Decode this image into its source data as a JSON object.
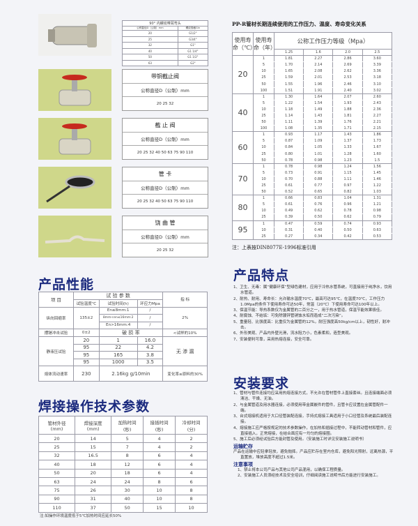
{
  "elbow": {
    "title": "90° 内螺纹带耳弯头",
    "col1": "公称直径D（公制）mm",
    "col2": "螺纹规格Gin",
    "rows": [
      [
        "20",
        "G1/2\""
      ],
      [
        "25",
        "G3/4\""
      ],
      [
        "32",
        "G1\""
      ],
      [
        "40",
        "G1 1/4\""
      ],
      [
        "50",
        "G1 1/2\""
      ],
      [
        "63",
        "G2\""
      ]
    ]
  },
  "products": [
    {
      "name": "带铜截止阀",
      "label": "公称直径D（公制）mm",
      "sizes": "20 25 32",
      "icon": "brass-valve-photo"
    },
    {
      "name": "截 止 阀",
      "label": "公称直径D（公制）mm",
      "sizes": "20 25 32 40 50 63 75 90 110",
      "icon": "stop-valve-photo"
    },
    {
      "name": "管 卡",
      "label": "公称直径D（公制）mm",
      "sizes": "20 25 32 40 50 63 75 90 110",
      "icon": "pipe-clamp-photo"
    },
    {
      "name": "饶 曲 管",
      "label": "公称直径D（公制）mm",
      "sizes": "20 25 32",
      "icon": "bend-pipe-photo"
    }
  ],
  "pressure": {
    "title": "PP-R管材长期连续使用的工作压力、温度、寿命变化关系",
    "h_temp": "使用寿命（℃）",
    "h_life": "使用寿命（年）",
    "h_grade": "公称工作压力等级（Mpa）",
    "grades": [
      "1.25",
      "1.6",
      "2.0",
      "2.5"
    ],
    "groups": [
      {
        "temp": "20",
        "rows": [
          [
            "1",
            "1.81",
            "2.27",
            "2.86",
            "3.60"
          ],
          [
            "5",
            "1.70",
            "2.14",
            "2.69",
            "3.39"
          ],
          [
            "10",
            "1.65",
            "2.08",
            "2.62",
            "3.36"
          ],
          [
            "25",
            "1.59",
            "2.01",
            "2.53",
            "3.18"
          ],
          [
            "50",
            "1.55",
            "1.96",
            "2.46",
            "3.10"
          ],
          [
            "100",
            "1.51",
            "1.91",
            "2.40",
            "3.02"
          ]
        ]
      },
      {
        "temp": "40",
        "rows": [
          [
            "1",
            "1.30",
            "1.64",
            "2.07",
            "2.60"
          ],
          [
            "5",
            "1.22",
            "1.54",
            "1.93",
            "2.43"
          ],
          [
            "10",
            "1.18",
            "1.49",
            "1.88",
            "2.36"
          ],
          [
            "25",
            "1.14",
            "1.43",
            "1.81",
            "2.27"
          ],
          [
            "50",
            "1.11",
            "1.39",
            "1.76",
            "2.21"
          ],
          [
            "100",
            "1.08",
            "1.35",
            "1.71",
            "2.15"
          ]
        ]
      },
      {
        "temp": "60",
        "rows": [
          [
            "1",
            "0.93",
            "1.17",
            "1.43",
            "1.86"
          ],
          [
            "5",
            "0.87",
            "1.09",
            "1.37",
            "1.73"
          ],
          [
            "10",
            "0.84",
            "1.05",
            "1.33",
            "1.67"
          ],
          [
            "25",
            "0.80",
            "1.01",
            "1.28",
            "1.60"
          ],
          [
            "50",
            "0.78",
            "0.98",
            "1.23",
            "1.5"
          ]
        ]
      },
      {
        "temp": "70",
        "rows": [
          [
            "1",
            "0.78",
            "0.98",
            "1.24",
            "1.56"
          ],
          [
            "5",
            "0.73",
            "0.91",
            "1.15",
            "1.45"
          ],
          [
            "10",
            "0.70",
            "0.88",
            "1.11",
            "1.46"
          ],
          [
            "25",
            "0.61",
            "0.77",
            "0.97",
            "1.22"
          ],
          [
            "50",
            "0.52",
            "0.65",
            "0.82",
            "1.03"
          ]
        ]
      },
      {
        "temp": "80",
        "rows": [
          [
            "1",
            "0.66",
            "0.83",
            "1.04",
            "1.31"
          ],
          [
            "5",
            "0.61",
            "0.76",
            "0.96",
            "1.21"
          ],
          [
            "10",
            "0.49",
            "0.62",
            "0.78",
            "0.98"
          ],
          [
            "25",
            "0.39",
            "0.50",
            "0.62",
            "0.79"
          ]
        ]
      },
      {
        "temp": "95",
        "rows": [
          [
            "1",
            "0.47",
            "0.59",
            "0.74",
            "0.93"
          ],
          [
            "10",
            "0.31",
            "0.40",
            "0.50",
            "0.63"
          ],
          [
            "25",
            "0.27",
            "0.34",
            "0.42",
            "0.53"
          ]
        ]
      }
    ],
    "note": "注：上表按DIN8077E-1996标准引用"
  },
  "performance": {
    "heading": "产品性能",
    "h_item": "项 目",
    "h_params": "试 验 参 数",
    "h_index": "指 标",
    "h_temp": "试验温度℃",
    "h_time": "试验时间(h)",
    "h_stress": "环应力Mpa",
    "shrink": {
      "label": "纵向回缩率",
      "temp": "135±2",
      "rows": [
        [
          "En≤8mm:1",
          "/"
        ],
        [
          "8mm<en≤16mm:2",
          "/"
        ],
        [
          "En>16mm:4",
          "/"
        ]
      ],
      "index": "2%"
    },
    "impact": {
      "label": "摆锤冲击试验",
      "temp": "0±2",
      "param": "破 损 率",
      "index": "<试样的10%"
    },
    "hydro": {
      "label": "静液压试验",
      "rows": [
        [
          "20",
          "1",
          "16.0"
        ],
        [
          "95",
          "22",
          "4.2"
        ],
        [
          "95",
          "165",
          "3.8"
        ],
        [
          "95",
          "1000",
          "3.5"
        ]
      ],
      "index": "无 渗 漏"
    },
    "melt": {
      "label": "熔体流动速率",
      "temp": "230",
      "param": "2.16kg  g/10min",
      "index": "变化率≤原料的30%"
    }
  },
  "welding": {
    "heading": "焊接操作技术参数",
    "headers": [
      "管材外径(mm)",
      "焊接深度(mm)",
      "加热时间(秒)",
      "接插时间(秒)",
      "冷却时间(分)"
    ],
    "rows": [
      [
        "20",
        "14",
        "5",
        "4",
        "2"
      ],
      [
        "25",
        "15",
        "7",
        "4",
        "2"
      ],
      [
        "32",
        "16.5",
        "8",
        "6",
        "4"
      ],
      [
        "40",
        "18",
        "12",
        "6",
        "4"
      ],
      [
        "50",
        "20",
        "18",
        "6",
        "4"
      ],
      [
        "63",
        "24",
        "24",
        "8",
        "6"
      ],
      [
        "75",
        "26",
        "30",
        "10",
        "8"
      ],
      [
        "90",
        "31",
        "40",
        "10",
        "8"
      ],
      [
        "110",
        "37",
        "50",
        "15",
        "10"
      ]
    ],
    "note": "注:如操作环境温度低于5℃加热时间应延长50%"
  },
  "features": {
    "heading": "产品特点",
    "items": [
      "1、卫生、无毒：属“健康环保”型绿色建材，应用于冷热水管系统，可直接用于纯净水，饮用水管道。",
      "2、耐热、耐用、寿命长：允许输水温度70℃，最高可达95℃，在温度70℃，工作压力1.0Mpa的条件下使用寿命可达50年，常温（20℃）下使用寿命可达100年以上。",
      "3、保温节能：导热系数仅为金属管的二百分之一，用于热水管道，保温节能效果极佳。",
      "4、耐腐蚀、不结垢：可免除镀锌管锈蚀水垢而造成“二次污染”。",
      "5、重量轻、比强度高：比重仅为金属管的12%，耐压强度高50kg/cm以上，韧性好，耐冲击。",
      "6、外形美观、产品内外壁光滑，流水阻力小，色素柔和，造型美观。",
      "7、安装便利可靠，采用热熔连接，安全可靠。"
    ]
  },
  "install": {
    "heading": "安装要求",
    "items": [
      "1、管材与管件连接均应采用热熔连接方式，不允许在管材管件上直接套丝。且连接端面必须清洁、干燥、无油。",
      "2、与金属管道及用水器连接，必须使用带金属嵌件的管件，且管卡应设置在金属管配件一端。",
      "3、台式熔接机适用于大口径管装配连接，手持式熔接工具适用于小口径管及系统最后装配连接。",
      "4、熔接施工应严格按规定的技术参数操作，在加热和插接过程中，不能转动管材和管件，应直接插入，正常熔接，在结合面应有一均匀的熔接圈。",
      "5、施工后必须经试验后方能封管及使用。（安装施工时详见安装施工说明书）"
    ],
    "storage_title": "运输贮存",
    "storage_text": "产品在运输中应轻拿轻放，避免抛摔。产品应贮存在室内仓库，避免阳光照射，远离热源，平直置放，堆放高度不超过1.5米。",
    "notes_title": "注意事项",
    "notes": [
      "1、禁止将本公司产品与其他公司产品混用，以确保工程质量。",
      "2、安装施工人员须经技术及安全培训，仔细阅读施工说明书后方能进行安装施工。"
    ]
  },
  "colors": {
    "heading": "#1b2a7e",
    "photo_bg": "#cfd78a",
    "valve_red": "#c62a1e"
  }
}
